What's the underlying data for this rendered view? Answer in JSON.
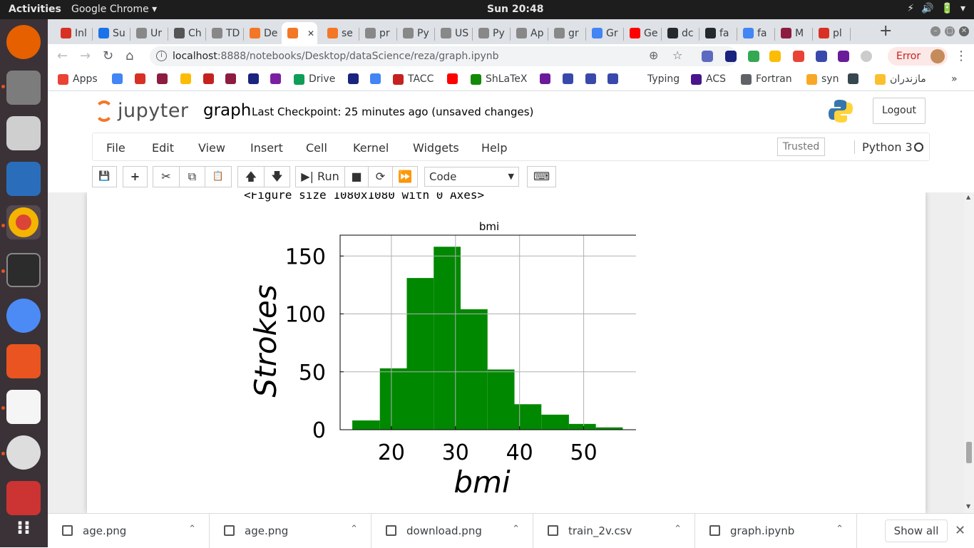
{
  "topbar": {
    "activities": "Activities",
    "app": "Google Chrome ▾",
    "clock": "Sun 20:48",
    "tray": [
      "▾",
      "⚡",
      "🔊",
      "🔋",
      "▾"
    ]
  },
  "tabs": [
    {
      "label": "Inl",
      "color": "#d93025"
    },
    {
      "label": "Su",
      "color": "#1a73e8"
    },
    {
      "label": "Ur",
      "color": "#888888"
    },
    {
      "label": "Ch",
      "color": "#555555"
    },
    {
      "label": "TD",
      "color": "#888888"
    },
    {
      "label": "De",
      "color": "#f37726"
    },
    {
      "label": "",
      "color": "#f37726"
    },
    {
      "label": "se",
      "color": "#f37726"
    },
    {
      "label": "pr",
      "color": "#888888"
    },
    {
      "label": "Py",
      "color": "#888888"
    },
    {
      "label": "US",
      "color": "#888888"
    },
    {
      "label": "Py",
      "color": "#888888"
    },
    {
      "label": "Ap",
      "color": "#888888"
    },
    {
      "label": "gr",
      "color": "#888888"
    },
    {
      "label": "Gr",
      "color": "#4285f4"
    },
    {
      "label": "Ge",
      "color": "#ff0000"
    },
    {
      "label": "dc",
      "color": "#24292e"
    },
    {
      "label": "fa",
      "color": "#24292e"
    },
    {
      "label": "fa",
      "color": "#4285f4"
    },
    {
      "label": "M",
      "color": "#8c1d40"
    },
    {
      "label": "pl",
      "color": "#d93025"
    }
  ],
  "omnibox": {
    "host": "localhost",
    "path": ":8888/notebooks/Desktop/dataScience/reza/graph.ipynb"
  },
  "error_button": "Error",
  "bookmarks": [
    {
      "label": "Apps",
      "color": "#ea4335"
    },
    {
      "label": "",
      "color": "#4285f4"
    },
    {
      "label": "",
      "color": "#d93025"
    },
    {
      "label": "",
      "color": "#8c1d40"
    },
    {
      "label": "",
      "color": "#fbbc04"
    },
    {
      "label": "",
      "color": "#c5221f"
    },
    {
      "label": "",
      "color": "#8c1d40"
    },
    {
      "label": "",
      "color": "#1a237e"
    },
    {
      "label": "",
      "color": "#7b1fa2"
    },
    {
      "label": "Drive",
      "color": "#0f9d58"
    },
    {
      "label": "",
      "color": "#1a237e"
    },
    {
      "label": "",
      "color": "#4285f4"
    },
    {
      "label": "TACC",
      "color": "#c5221f"
    },
    {
      "label": "",
      "color": "#ff0000"
    },
    {
      "label": "ShLaTeX",
      "color": "#138a07"
    },
    {
      "label": "",
      "color": "#6a1b9a"
    },
    {
      "label": "",
      "color": "#3949ab"
    },
    {
      "label": "",
      "color": "#3949ab"
    },
    {
      "label": "",
      "color": "#3949ab"
    },
    {
      "label": "Typing",
      "color": "#ffffff"
    },
    {
      "label": "ACS",
      "color": "#4a148c"
    },
    {
      "label": "Fortran",
      "color": "#5f6368"
    },
    {
      "label": "syn",
      "color": "#f9a825"
    },
    {
      "label": "",
      "color": "#37474f"
    },
    {
      "label": "مازندران",
      "color": "#fbc02d"
    }
  ],
  "bookmarks_more": "»",
  "jupyter": {
    "logo_text": "jupyter",
    "notebook_name": "graph",
    "checkpoint": "Last Checkpoint: 25 minutes ago   (unsaved changes)",
    "logout": "Logout",
    "menus": [
      "File",
      "Edit",
      "View",
      "Insert",
      "Cell",
      "Kernel",
      "Widgets",
      "Help"
    ],
    "trusted": "Trusted",
    "kernel": "Python 3",
    "toolbar": {
      "save": "💾",
      "add": "+",
      "cut": "✂",
      "copy": "⧉",
      "paste": "📋",
      "up": "🡅",
      "down": "🡇",
      "run": "▶| Run",
      "stop": "■",
      "restart": "⟳",
      "fastforward": "⏩",
      "keyboard": "⌨"
    },
    "cell_type": "Code"
  },
  "output": {
    "figure_text": "<Figure size 1080x1080 with 0 Axes>"
  },
  "chart_data": {
    "type": "bar",
    "title": "bmi",
    "xlabel": "bmi",
    "ylabel": "Strokes",
    "bar_color": "#008800",
    "grid": true,
    "bins": [
      {
        "start": 13.9,
        "end": 18.2,
        "value": 8
      },
      {
        "start": 18.2,
        "end": 22.4,
        "value": 53
      },
      {
        "start": 22.4,
        "end": 26.6,
        "value": 131
      },
      {
        "start": 26.6,
        "end": 30.8,
        "value": 158
      },
      {
        "start": 30.8,
        "end": 35.0,
        "value": 104
      },
      {
        "start": 35.0,
        "end": 39.2,
        "value": 52
      },
      {
        "start": 39.2,
        "end": 43.4,
        "value": 22
      },
      {
        "start": 43.4,
        "end": 47.7,
        "value": 13
      },
      {
        "start": 47.7,
        "end": 51.9,
        "value": 5
      },
      {
        "start": 51.9,
        "end": 56.1,
        "value": 2
      }
    ],
    "xlim": [
      12,
      58.5
    ],
    "ylim": [
      0,
      168
    ],
    "xticks": [
      20,
      30,
      40,
      50
    ],
    "yticks": [
      0,
      50,
      100,
      150
    ]
  },
  "downloads": [
    {
      "name": "age.png"
    },
    {
      "name": "age.png"
    },
    {
      "name": "download.png"
    },
    {
      "name": "train_2v.csv"
    },
    {
      "name": "graph.ipynb"
    }
  ],
  "show_all": "Show all",
  "close": "✕"
}
